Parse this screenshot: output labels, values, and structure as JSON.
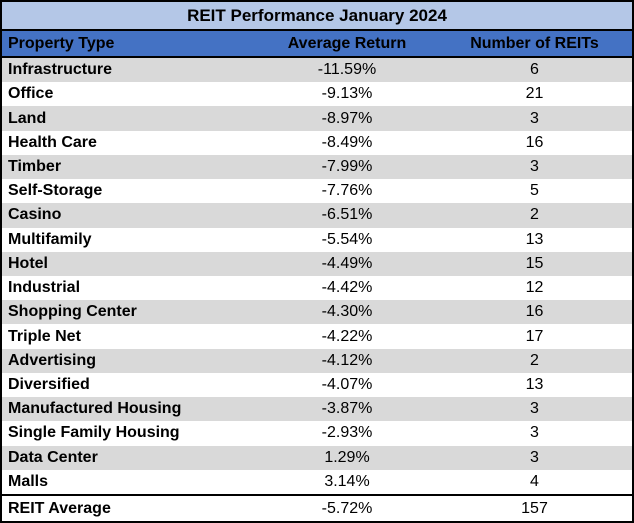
{
  "chart_data": {
    "type": "table",
    "title": "REIT Performance January 2024",
    "columns": [
      "Property Type",
      "Average Return",
      "Number of REITs"
    ],
    "rows": [
      [
        "Infrastructure",
        "-11.59%",
        "6"
      ],
      [
        "Office",
        "-9.13%",
        "21"
      ],
      [
        "Land",
        "-8.97%",
        "3"
      ],
      [
        "Health Care",
        "-8.49%",
        "16"
      ],
      [
        "Timber",
        "-7.99%",
        "3"
      ],
      [
        "Self-Storage",
        "-7.76%",
        "5"
      ],
      [
        "Casino",
        "-6.51%",
        "2"
      ],
      [
        "Multifamily",
        "-5.54%",
        "13"
      ],
      [
        "Hotel",
        "-4.49%",
        "15"
      ],
      [
        "Industrial",
        "-4.42%",
        "12"
      ],
      [
        "Shopping Center",
        "-4.30%",
        "16"
      ],
      [
        "Triple Net",
        "-4.22%",
        "17"
      ],
      [
        "Advertising",
        "-4.12%",
        "2"
      ],
      [
        "Diversified",
        "-4.07%",
        "13"
      ],
      [
        "Manufactured Housing",
        "-3.87%",
        "3"
      ],
      [
        "Single Family Housing",
        "-2.93%",
        "3"
      ],
      [
        "Data Center",
        "1.29%",
        "3"
      ],
      [
        "Malls",
        "3.14%",
        "4"
      ]
    ],
    "footer_row": [
      "REIT Average",
      "-5.72%",
      "157"
    ],
    "layout": {
      "striped": true,
      "stripe_starts_on_first_data_row": true,
      "column_alignment": [
        "left",
        "center",
        "center"
      ],
      "gridlines": false,
      "legend": "none"
    }
  },
  "colors": {
    "title_bg": "#B4C7E7",
    "header_bg": "#4472C4",
    "stripe_bg": "#D9D9D9",
    "border_color": "#000000",
    "text_color": "#000000"
  }
}
